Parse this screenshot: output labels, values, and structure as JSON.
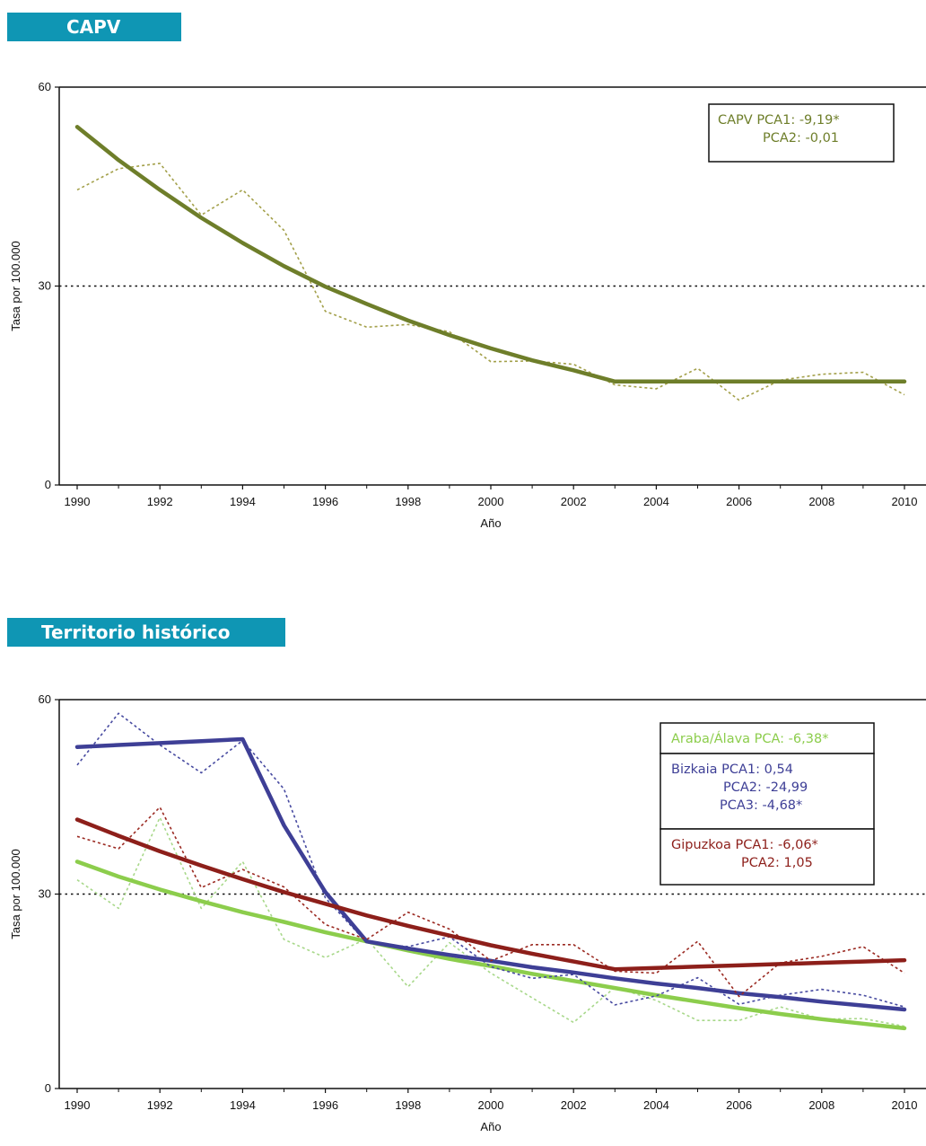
{
  "sections": [
    {
      "title": "CAPV"
    },
    {
      "title": "Territorio histórico"
    }
  ],
  "chart_data": [
    {
      "type": "line",
      "xlabel": "Año",
      "ylabel": "Tasa por 100.000",
      "xlim": [
        1990,
        2010
      ],
      "ylim": [
        0,
        60
      ],
      "y_ticks": [
        "0",
        "30",
        "60"
      ],
      "x_ticks": [
        "1990",
        "1992",
        "1994",
        "1996",
        "1998",
        "2000",
        "2002",
        "2004",
        "2006",
        "2008",
        "2010"
      ],
      "reference_line": {
        "y": 30,
        "style": "dotted"
      },
      "series": [
        {
          "role": "observed",
          "color": "#a3a04a",
          "style": "dotted",
          "x": [
            1990,
            1991,
            1992,
            1993,
            1994,
            1995,
            1996,
            1997,
            1998,
            1999,
            2000,
            2001,
            2002,
            2003,
            2004,
            2005,
            2006,
            2007,
            2008,
            2009,
            2010
          ],
          "y": [
            44.5,
            47.7,
            48.5,
            40.7,
            44.5,
            38.4,
            26.2,
            23.8,
            24.2,
            23.1,
            18.6,
            18.7,
            18.2,
            15.1,
            14.5,
            17.6,
            12.8,
            15.8,
            16.7,
            17.0,
            13.6
          ]
        },
        {
          "role": "trend",
          "color": "#6e7e2a",
          "style": "solid",
          "x": [
            1990,
            1991,
            1992,
            1993,
            1994,
            1995,
            1996,
            1997,
            1998,
            1999,
            2000,
            2001,
            2002,
            2003,
            2004,
            2005,
            2006,
            2007,
            2008,
            2009,
            2010
          ],
          "y": [
            54.0,
            49.0,
            44.5,
            40.3,
            36.5,
            33.0,
            29.9,
            27.3,
            24.8,
            22.6,
            20.6,
            18.8,
            17.3,
            15.6,
            15.6,
            15.6,
            15.6,
            15.6,
            15.6,
            15.6,
            15.6
          ]
        }
      ],
      "legend": {
        "color": "#6e7e2a",
        "lines": [
          "CAPV PCA1: -9,19*",
          "PCA2: -0,01"
        ]
      }
    },
    {
      "type": "line",
      "xlabel": "Año",
      "ylabel": "Tasa por 100.000",
      "xlim": [
        1990,
        2010
      ],
      "ylim": [
        0,
        60
      ],
      "y_ticks": [
        "0",
        "30",
        "60"
      ],
      "x_ticks": [
        "1990",
        "1992",
        "1994",
        "1996",
        "1998",
        "2000",
        "2002",
        "2004",
        "2006",
        "2008",
        "2010"
      ],
      "reference_line": {
        "y": 30,
        "style": "dotted"
      },
      "series": [
        {
          "role": "observed",
          "color": "#a8d88a",
          "style": "dotted",
          "x": [
            1990,
            1991,
            1992,
            1993,
            1994,
            1995,
            1996,
            1997,
            1998,
            1999,
            2000,
            2001,
            2002,
            2003,
            2004,
            2005,
            2006,
            2007,
            2008,
            2009,
            2010
          ],
          "y": [
            32.2,
            27.8,
            41.8,
            27.8,
            35.0,
            23.0,
            20.2,
            23.1,
            15.7,
            22.5,
            17.8,
            14.0,
            10.2,
            15.6,
            13.6,
            10.5,
            10.5,
            12.6,
            10.7,
            10.8,
            9.6
          ]
        },
        {
          "role": "trend",
          "color": "#8ccd4c",
          "style": "solid",
          "x": [
            1990,
            1991,
            1992,
            1993,
            1994,
            1995,
            1996,
            1997,
            1998,
            1999,
            2000,
            2001,
            2002,
            2003,
            2004,
            2005,
            2006,
            2007,
            2008,
            2009,
            2010
          ],
          "y": [
            35.0,
            32.7,
            30.7,
            28.9,
            27.2,
            25.7,
            24.1,
            22.7,
            21.3,
            20.0,
            18.9,
            17.7,
            16.6,
            15.5,
            14.4,
            13.4,
            12.4,
            11.5,
            10.7,
            10.0,
            9.3
          ]
        },
        {
          "role": "observed",
          "color": "#474aa0",
          "style": "dotted",
          "x": [
            1990,
            1991,
            1992,
            1993,
            1994,
            1995,
            1996,
            1997,
            1998,
            1999,
            2000,
            2001,
            2002,
            2003,
            2004,
            2005,
            2006,
            2007,
            2008,
            2009,
            2010
          ],
          "y": [
            49.9,
            57.9,
            53.0,
            48.7,
            53.7,
            46.2,
            29.4,
            22.5,
            21.9,
            23.4,
            18.8,
            17.0,
            17.6,
            12.9,
            14.3,
            17.1,
            13.0,
            14.4,
            15.3,
            14.4,
            12.6
          ]
        },
        {
          "role": "trend",
          "color": "#3e3f96",
          "style": "solid",
          "x": [
            1990,
            1991,
            1992,
            1993,
            1994,
            1995,
            1996,
            1997,
            1998,
            1999,
            2000,
            2001,
            2002,
            2003,
            2004,
            2005,
            2006,
            2007,
            2008,
            2009,
            2010
          ],
          "y": [
            52.7,
            53.0,
            53.3,
            53.6,
            53.9,
            40.6,
            30.3,
            22.7,
            21.6,
            20.6,
            19.7,
            18.7,
            17.9,
            17.0,
            16.2,
            15.5,
            14.7,
            14.1,
            13.4,
            12.8,
            12.2
          ]
        },
        {
          "role": "observed",
          "color": "#9b2a22",
          "style": "dotted",
          "x": [
            1990,
            1991,
            1992,
            1993,
            1994,
            1995,
            1996,
            1997,
            1998,
            1999,
            2000,
            2001,
            2002,
            2003,
            2004,
            2005,
            2006,
            2007,
            2008,
            2009,
            2010
          ],
          "y": [
            38.9,
            37.0,
            43.4,
            31.0,
            33.8,
            31.1,
            25.3,
            23.0,
            27.2,
            24.6,
            19.7,
            22.2,
            22.2,
            18.1,
            17.8,
            22.7,
            14.2,
            19.4,
            20.4,
            21.9,
            17.8
          ]
        },
        {
          "role": "trend",
          "color": "#8d1f1a",
          "style": "solid",
          "x": [
            1990,
            1991,
            1992,
            1993,
            1994,
            1995,
            1996,
            1997,
            1998,
            1999,
            2000,
            2001,
            2002,
            2003,
            2004,
            2005,
            2006,
            2007,
            2008,
            2009,
            2010
          ],
          "y": [
            41.5,
            39.0,
            36.6,
            34.4,
            32.3,
            30.3,
            28.5,
            26.7,
            25.1,
            23.6,
            22.1,
            20.8,
            19.6,
            18.4,
            18.6,
            18.8,
            19.0,
            19.2,
            19.4,
            19.6,
            19.8
          ]
        }
      ],
      "legends": [
        {
          "color": "#8ccd4c",
          "lines": [
            "Araba/Álava PCA: -6,38*"
          ]
        },
        {
          "color": "#3e3f96",
          "lines": [
            "Bizkaia PCA1: 0,54",
            "PCA2: -24,99",
            "PCA3: -4,68*"
          ]
        },
        {
          "color": "#8d1f1a",
          "lines": [
            "Gipuzkoa PCA1: -6,06*",
            "PCA2: 1,05"
          ]
        }
      ]
    }
  ]
}
